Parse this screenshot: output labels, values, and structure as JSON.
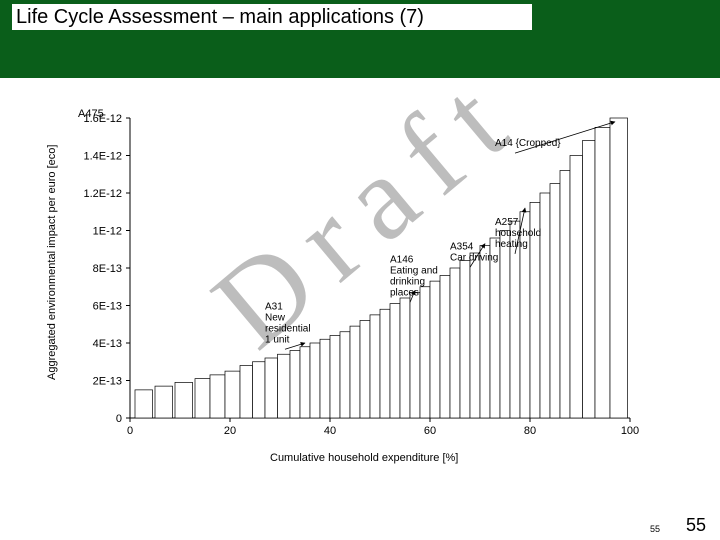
{
  "header": {
    "title": "Life Cycle Assessment – main applications (7)"
  },
  "watermark": "Draft",
  "page_small": "55",
  "page_big": "55",
  "chart": {
    "type": "bar",
    "top_left_label": "A475",
    "ylabel": "Aggregated environmental impact per euro [eco]",
    "xlabel": "Cumulative household expenditure [%]",
    "xlim": [
      0,
      100
    ],
    "xticks": [
      0,
      20,
      40,
      60,
      80,
      100
    ],
    "ylim": [
      0,
      1.6e-12
    ],
    "ytick_labels": [
      "0",
      "2E-13",
      "4E-13",
      "6E-13",
      "8E-13",
      "1E-12",
      "1.2E-12",
      "1.4E-12",
      "1.6E-12"
    ],
    "ytick_values": [
      0,
      2e-13,
      4e-13,
      6e-13,
      8e-13,
      1e-12,
      1.2e-12,
      1.4e-12,
      1.6e-12
    ],
    "bar_fill": "#ffffff",
    "bar_stroke": "#000000",
    "axis_color": "#000000",
    "background_color": "#ffffff",
    "title_fontsize": 20,
    "label_fontsize": 11,
    "tick_fontsize": 11,
    "annot_fontsize": 10,
    "bars": [
      {
        "x": 1,
        "w": 3.5,
        "h": 1.5e-13
      },
      {
        "x": 5,
        "w": 3.5,
        "h": 1.7e-13
      },
      {
        "x": 9,
        "w": 3.5,
        "h": 1.9e-13
      },
      {
        "x": 13,
        "w": 3,
        "h": 2.1e-13
      },
      {
        "x": 16,
        "w": 3,
        "h": 2.3e-13
      },
      {
        "x": 19,
        "w": 3,
        "h": 2.5e-13
      },
      {
        "x": 22,
        "w": 2.5,
        "h": 2.8e-13
      },
      {
        "x": 24.5,
        "w": 2.5,
        "h": 3e-13
      },
      {
        "x": 27,
        "w": 2.5,
        "h": 3.2e-13
      },
      {
        "x": 29.5,
        "w": 2.5,
        "h": 3.4e-13
      },
      {
        "x": 32,
        "w": 2,
        "h": 3.6e-13
      },
      {
        "x": 34,
        "w": 2,
        "h": 3.8e-13
      },
      {
        "x": 36,
        "w": 2,
        "h": 4e-13
      },
      {
        "x": 38,
        "w": 2,
        "h": 4.2e-13
      },
      {
        "x": 40,
        "w": 2,
        "h": 4.4e-13
      },
      {
        "x": 42,
        "w": 2,
        "h": 4.6e-13
      },
      {
        "x": 44,
        "w": 2,
        "h": 4.9e-13
      },
      {
        "x": 46,
        "w": 2,
        "h": 5.2e-13
      },
      {
        "x": 48,
        "w": 2,
        "h": 5.5e-13
      },
      {
        "x": 50,
        "w": 2,
        "h": 5.8e-13
      },
      {
        "x": 52,
        "w": 2,
        "h": 6.1e-13
      },
      {
        "x": 54,
        "w": 2,
        "h": 6.4e-13
      },
      {
        "x": 56,
        "w": 2,
        "h": 6.7e-13
      },
      {
        "x": 58,
        "w": 2,
        "h": 7e-13
      },
      {
        "x": 60,
        "w": 2,
        "h": 7.3e-13
      },
      {
        "x": 62,
        "w": 2,
        "h": 7.6e-13
      },
      {
        "x": 64,
        "w": 2,
        "h": 8e-13
      },
      {
        "x": 66,
        "w": 2,
        "h": 8.4e-13
      },
      {
        "x": 68,
        "w": 2,
        "h": 8.8e-13
      },
      {
        "x": 70,
        "w": 2,
        "h": 9.2e-13
      },
      {
        "x": 72,
        "w": 2,
        "h": 9.6e-13
      },
      {
        "x": 74,
        "w": 2,
        "h": 1e-12
      },
      {
        "x": 76,
        "w": 2,
        "h": 1.05e-12
      },
      {
        "x": 78,
        "w": 2,
        "h": 1.1e-12
      },
      {
        "x": 80,
        "w": 2,
        "h": 1.15e-12
      },
      {
        "x": 82,
        "w": 2,
        "h": 1.2e-12
      },
      {
        "x": 84,
        "w": 2,
        "h": 1.25e-12
      },
      {
        "x": 86,
        "w": 2,
        "h": 1.32e-12
      },
      {
        "x": 88,
        "w": 2.5,
        "h": 1.4e-12
      },
      {
        "x": 90.5,
        "w": 2.5,
        "h": 1.48e-12
      },
      {
        "x": 93,
        "w": 3,
        "h": 1.55e-12
      },
      {
        "x": 96,
        "w": 3.5,
        "h": 1.6e-12
      }
    ],
    "annotations": [
      {
        "lines": [
          "A31",
          "New",
          "residential",
          "1 unit"
        ],
        "tx": 27,
        "ty_top": 5.8e-13,
        "arrow_to_x": 35,
        "arrow_to_y": 4e-13
      },
      {
        "lines": [
          "A146",
          "Eating and",
          "drinking",
          "places"
        ],
        "tx": 52,
        "ty_top": 8.3e-13,
        "arrow_to_x": 57,
        "arrow_to_y": 6.8e-13
      },
      {
        "lines": [
          "A354",
          "Car driving"
        ],
        "tx": 64,
        "ty_top": 9e-13,
        "arrow_to_x": 71,
        "arrow_to_y": 9.3e-13
      },
      {
        "lines": [
          "A257",
          "household",
          "heating"
        ],
        "tx": 73,
        "ty_top": 1.03e-12,
        "arrow_to_x": 79,
        "arrow_to_y": 1.12e-12
      },
      {
        "lines": [
          "A14 {Cropped}"
        ],
        "tx": 73,
        "ty_top": 1.45e-12,
        "arrow_to_x": 97,
        "arrow_to_y": 1.58e-12
      }
    ]
  }
}
